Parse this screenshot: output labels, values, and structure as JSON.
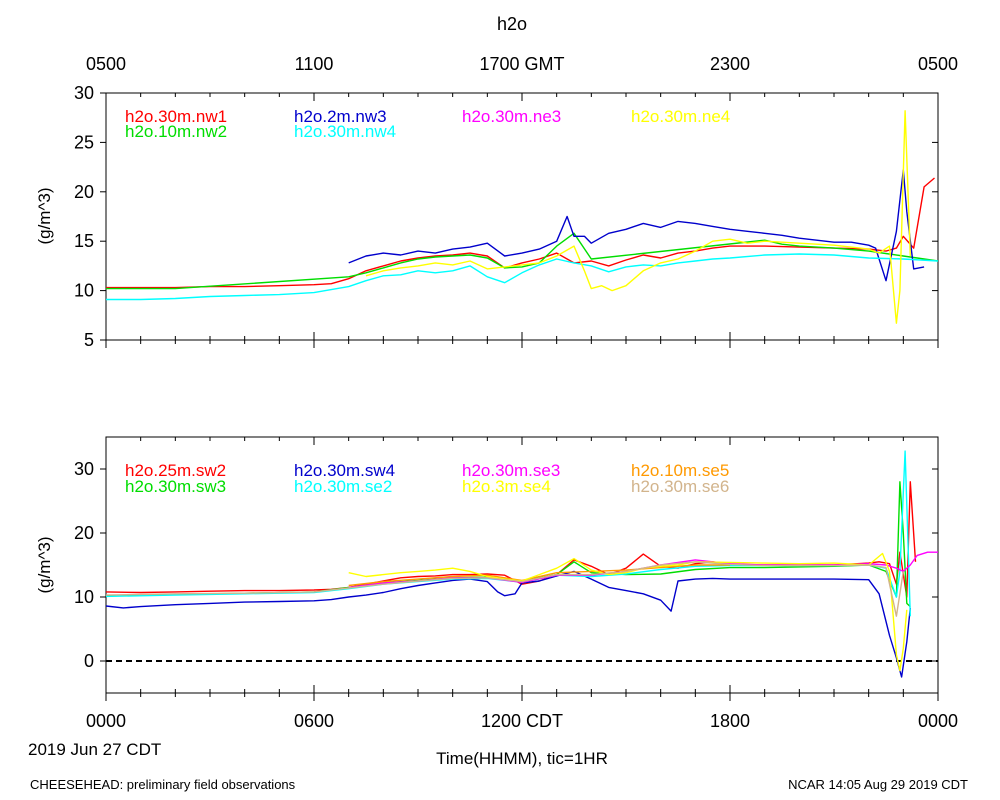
{
  "figure": {
    "title": "h2o",
    "top_axis_labels": [
      "0500",
      "1100",
      "1700 GMT",
      "2300",
      "0500"
    ],
    "bottom_axis_labels": [
      "0000",
      "0600",
      "1200 CDT",
      "1800",
      "0000"
    ],
    "date_label": "2019 Jun 27 CDT",
    "xlabel": "Time(HHMM), tic=1HR",
    "footer_left": "CHEESEHEAD: preliminary field observations",
    "footer_right": "NCAR 14:05 Aug 29 2019 CDT"
  },
  "chart_data": [
    {
      "type": "line",
      "name": "upper",
      "ylabel": "(g/m^3)",
      "xlim": [
        0,
        24
      ],
      "ylim": [
        5,
        30
      ],
      "yticks": [
        5,
        10,
        15,
        20,
        25,
        30
      ],
      "hline": null,
      "series": [
        {
          "name": "h2o.30m.nw1",
          "color": "#ff0000",
          "x": [
            0,
            1,
            2,
            3,
            4,
            5,
            6,
            6.5,
            7,
            7.5,
            8,
            8.5,
            9,
            9.5,
            10,
            10.5,
            11,
            11.5,
            12,
            12.5,
            13,
            13.5,
            14,
            14.5,
            15,
            15.5,
            16,
            16.5,
            17,
            17.5,
            18,
            19,
            20,
            21,
            22,
            22.5,
            22.8,
            23,
            23.3,
            23.6,
            23.9
          ],
          "y": [
            10.3,
            10.3,
            10.3,
            10.4,
            10.4,
            10.5,
            10.6,
            10.7,
            11.2,
            12,
            12.5,
            13,
            13.3,
            13.5,
            13.6,
            13.8,
            13.5,
            12.3,
            12.8,
            13.2,
            13.8,
            12.8,
            13,
            12.5,
            13.1,
            13.6,
            13.3,
            13.8,
            14,
            14.3,
            14.5,
            14.5,
            14.4,
            14.3,
            14.2,
            14,
            14.3,
            15.5,
            14.3,
            20.5,
            21.4
          ]
        },
        {
          "name": "h2o.10m.nw2",
          "color": "#00dd00",
          "x": [
            0,
            1,
            2,
            7,
            7.5,
            8,
            8.5,
            9,
            9.5,
            10,
            10.5,
            11,
            11.5,
            12,
            12.5,
            13,
            13.5,
            14,
            19,
            19.5,
            20,
            21,
            22,
            23,
            24
          ],
          "y": [
            10.2,
            10.2,
            10.2,
            11.4,
            11.8,
            12.3,
            12.8,
            13.2,
            13.4,
            13.5,
            13.6,
            13.3,
            12.3,
            12.4,
            12.8,
            14.5,
            15.8,
            13.2,
            15.1,
            14.7,
            14.5,
            14.3,
            14,
            13.5,
            13
          ]
        },
        {
          "name": "h2o.2m.nw3",
          "color": "#0000cc",
          "x": [
            7,
            7.5,
            8,
            8.5,
            9,
            9.5,
            10,
            10.5,
            11,
            11.5,
            12,
            12.5,
            13,
            13.3,
            13.5,
            13.8,
            14,
            14.5,
            15,
            15.5,
            16,
            16.5,
            17,
            17.5,
            18,
            18.5,
            19,
            19.5,
            20,
            20.5,
            21,
            21.5,
            22,
            22.2,
            22.5,
            22.8,
            23,
            23.1,
            23.3,
            23.6
          ],
          "y": [
            12.8,
            13.5,
            13.8,
            13.6,
            14,
            13.8,
            14.2,
            14.4,
            14.8,
            13.5,
            13.8,
            14.2,
            15,
            17.5,
            15.5,
            15.5,
            14.8,
            15.8,
            16.2,
            16.8,
            16.4,
            17,
            16.8,
            16.5,
            16.2,
            16,
            15.8,
            15.6,
            15.3,
            15.1,
            14.9,
            14.9,
            14.6,
            14.3,
            11,
            16,
            22.2,
            18,
            12.2,
            12.4
          ]
        },
        {
          "name": "h2o.30m.nw4",
          "color": "#00ffff",
          "x": [
            0,
            1,
            2,
            3,
            4,
            5,
            6,
            6.5,
            7,
            7.5,
            8,
            8.5,
            9,
            9.5,
            10,
            10.5,
            11,
            11.5,
            12,
            12.5,
            13,
            13.5,
            14,
            14.5,
            15,
            15.5,
            16,
            16.5,
            17,
            17.5,
            18,
            19,
            20,
            21,
            22,
            23,
            24
          ],
          "y": [
            9.1,
            9.1,
            9.2,
            9.4,
            9.5,
            9.6,
            9.8,
            10.1,
            10.4,
            11,
            11.5,
            11.6,
            12,
            11.8,
            12,
            12.5,
            11.4,
            10.8,
            11.8,
            12.6,
            13.2,
            12.8,
            12.5,
            11.9,
            12.4,
            12.6,
            12.5,
            12.8,
            13,
            13.2,
            13.3,
            13.6,
            13.7,
            13.6,
            13.3,
            13.2,
            13
          ]
        },
        {
          "name": "h2o.30m.ne3",
          "color": "#ff00ff",
          "x": [],
          "y": []
        },
        {
          "name": "h2o.30m.ne4",
          "color": "#ffff00",
          "x": [
            7.5,
            8,
            8.5,
            9,
            9.5,
            10,
            10.5,
            11,
            11.5,
            12,
            12.5,
            13,
            13.5,
            13.8,
            14,
            14.3,
            14.6,
            15,
            15.5,
            16,
            16.5,
            17,
            17.5,
            18,
            18.5,
            19,
            20,
            21,
            22,
            22.3,
            22.6,
            22.8,
            22.9,
            23.05,
            23.2
          ],
          "y": [
            11.5,
            12,
            12.3,
            12.5,
            12.8,
            12.6,
            13,
            12.2,
            12.4,
            12.6,
            12.8,
            13.5,
            14.5,
            12,
            10.2,
            10.5,
            10,
            10.5,
            12,
            12.8,
            13.2,
            14,
            15,
            15.2,
            14.8,
            15,
            14.8,
            14.6,
            14.2,
            13.8,
            14.5,
            6.7,
            10,
            28.2,
            13.5
          ]
        }
      ]
    },
    {
      "type": "line",
      "name": "lower",
      "ylabel": "(g/m^3)",
      "xlim": [
        0,
        24
      ],
      "ylim": [
        -5,
        35
      ],
      "yticks": [
        0,
        10,
        20,
        30
      ],
      "hline": 0,
      "series": [
        {
          "name": "h2o.25m.sw2",
          "color": "#ff0000",
          "x": [
            0,
            1,
            2,
            3,
            4,
            5,
            6,
            6.5,
            7,
            7.5,
            8,
            8.5,
            9,
            9.5,
            10,
            10.5,
            11,
            11.5,
            12,
            12.5,
            13,
            13.5,
            14,
            14.5,
            15,
            15.5,
            16,
            16.5,
            17,
            17.5,
            18,
            19,
            20,
            21,
            22,
            22.3,
            22.6,
            22.8,
            22.9,
            23.1,
            23.2,
            23.35
          ],
          "y": [
            10.8,
            10.7,
            10.8,
            10.9,
            11,
            11,
            11.1,
            11.2,
            11.5,
            12,
            12.5,
            13,
            13.2,
            13.3,
            13.5,
            13.5,
            13.6,
            13.4,
            12,
            12.5,
            13.5,
            15.8,
            14.8,
            13.5,
            14.5,
            16.7,
            14.8,
            14.5,
            15.2,
            15.5,
            15,
            15,
            15,
            15,
            15.3,
            15.5,
            15.2,
            12,
            17,
            10,
            28,
            15.5
          ]
        },
        {
          "name": "h2o.30m.sw3",
          "color": "#00dd00",
          "x": [
            0,
            2,
            4,
            6,
            7,
            8,
            9,
            10,
            11,
            12,
            13,
            13.5,
            14,
            15,
            16,
            17,
            18,
            19,
            20,
            21,
            22,
            22.5,
            22.8,
            22.9,
            23,
            23.1,
            23.2
          ],
          "y": [
            10.2,
            10.4,
            10.6,
            10.8,
            11.5,
            12.2,
            12.6,
            13,
            13.1,
            12.5,
            13.5,
            15.5,
            13.8,
            13.5,
            13.6,
            14.3,
            14.6,
            14.6,
            14.7,
            14.8,
            15,
            14,
            10,
            28,
            20,
            9,
            8.5
          ]
        },
        {
          "name": "h2o.30m.sw4",
          "color": "#0000cc",
          "x": [
            0,
            0.5,
            1,
            2,
            3,
            4,
            5,
            6,
            6.5,
            7,
            7.5,
            8,
            8.5,
            9,
            9.5,
            10,
            10.5,
            11,
            11.3,
            11.5,
            11.8,
            12,
            12.5,
            13,
            13.5,
            14,
            14.5,
            15,
            15.5,
            16,
            16.3,
            16.5,
            17,
            17.5,
            18,
            19,
            20,
            21,
            22,
            22.3,
            22.6,
            22.8,
            22.95,
            23.1,
            23.2
          ],
          "y": [
            8.6,
            8.3,
            8.5,
            8.8,
            9,
            9.2,
            9.3,
            9.4,
            9.6,
            10,
            10.3,
            10.7,
            11.3,
            11.8,
            12.2,
            12.6,
            12.8,
            12.4,
            10.8,
            10.2,
            10.5,
            12.2,
            12.5,
            13.3,
            14,
            12.8,
            11.5,
            11,
            10.5,
            9.5,
            7.8,
            12.5,
            12.8,
            12.9,
            12.8,
            12.8,
            12.8,
            12.8,
            12.7,
            10.5,
            4,
            0.5,
            -2.5,
            3,
            8.3
          ]
        },
        {
          "name": "h2o.30m.se2",
          "color": "#00ffff",
          "x": [
            0,
            2,
            4,
            6,
            7,
            8,
            9,
            10,
            11,
            12,
            13,
            14,
            15,
            16,
            17,
            18,
            19,
            20,
            21,
            22,
            22.5,
            22.8,
            22.9,
            23.05,
            23.2
          ],
          "y": [
            10.1,
            10.3,
            10.5,
            10.7,
            11.3,
            12,
            12.4,
            12.8,
            12.9,
            12.3,
            13.4,
            13.2,
            13.6,
            14.3,
            14.8,
            14.9,
            14.9,
            14.9,
            14.9,
            15,
            14.5,
            10,
            14,
            32.8,
            7
          ]
        },
        {
          "name": "h2o.30m.se3",
          "color": "#ff00ff",
          "x": [
            7,
            8,
            9,
            10,
            11,
            12,
            13,
            14,
            15,
            16,
            17,
            18,
            19,
            20,
            21,
            22,
            22.5,
            22.8,
            23,
            23.2,
            23.4,
            23.7,
            24
          ],
          "y": [
            11.5,
            12.2,
            12.5,
            13,
            13,
            12.3,
            13.4,
            13.4,
            14,
            15,
            15.8,
            15.2,
            15,
            15,
            15,
            15.2,
            15,
            14.5,
            14,
            15,
            16.5,
            17,
            17
          ]
        },
        {
          "name": "h2o.10m.se5",
          "color": "#ff9900",
          "x": [
            7,
            8,
            9,
            10,
            11,
            12,
            13,
            14,
            15,
            16,
            17,
            18
          ],
          "y": [
            11.8,
            12.4,
            12.8,
            13.2,
            13.4,
            12.6,
            13.8,
            14,
            14.2,
            14.6,
            15,
            15
          ]
        },
        {
          "name": "h2o.3m.se4",
          "color": "#ffff00",
          "x": [
            7,
            7.5,
            8,
            8.5,
            9,
            9.5,
            10,
            10.5,
            11,
            11.5,
            12,
            12.5,
            13,
            13.5,
            14,
            14.5,
            15,
            15.5,
            16,
            16.5,
            17,
            18,
            19,
            20,
            21,
            22,
            22.4,
            22.6,
            22.8,
            22.9,
            23,
            23.1
          ],
          "y": [
            13.8,
            13.2,
            13.5,
            13.8,
            14,
            14.2,
            14.5,
            14,
            13.2,
            12.8,
            12.5,
            13.5,
            14.5,
            16,
            14.2,
            13.5,
            13.8,
            14.5,
            14.8,
            15,
            15.5,
            15.4,
            15.3,
            15.2,
            15.3,
            15,
            16.8,
            14,
            1,
            -1.5,
            2,
            8
          ]
        },
        {
          "name": "h2o.30m.se6",
          "color": "#d2b48c",
          "x": [
            0,
            2,
            4,
            6,
            7,
            8,
            9,
            10,
            11,
            12,
            13,
            14,
            15,
            16,
            17,
            18,
            19,
            20,
            21,
            22,
            22.5,
            22.8,
            23
          ],
          "y": [
            10.3,
            10.5,
            10.6,
            10.8,
            11.4,
            12,
            12.5,
            12.9,
            13,
            12.4,
            13.5,
            13.5,
            14,
            15,
            15.5,
            15.1,
            14.9,
            14.9,
            14.9,
            15,
            14.6,
            7,
            14
          ]
        }
      ]
    }
  ]
}
